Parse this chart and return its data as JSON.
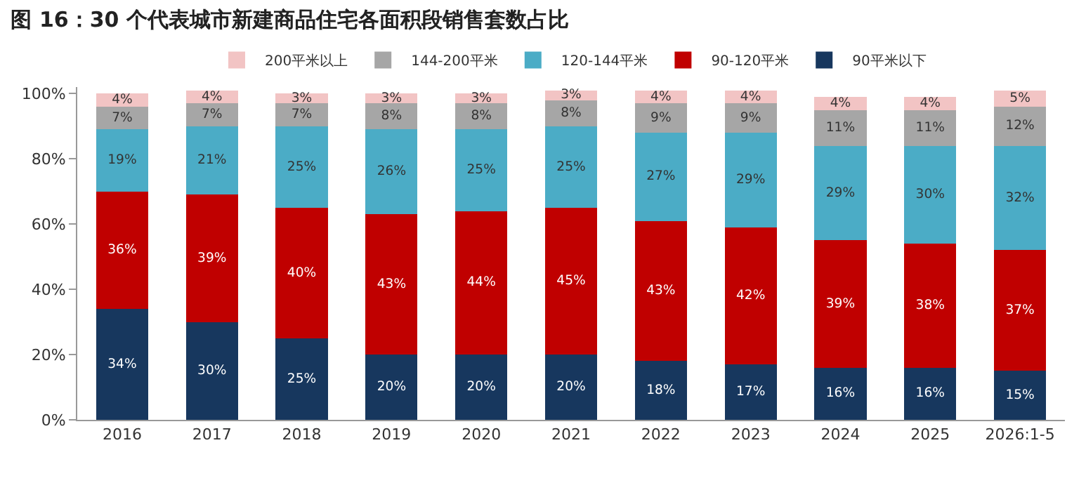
{
  "chart_data": {
    "type": "bar",
    "stacked": true,
    "title": "图 16：30 个代表城市新建商品住宅各面积段销售套数占比",
    "categories": [
      "2016",
      "2017",
      "2018",
      "2019",
      "2020",
      "2021",
      "2022",
      "2023",
      "2024",
      "2025",
      "2026:1-5"
    ],
    "series": [
      {
        "name": "90平米以下",
        "color": "#17375e",
        "values": [
          34,
          30,
          25,
          20,
          20,
          20,
          18,
          17,
          16,
          16,
          15
        ],
        "value_labels": [
          "34%",
          "30%",
          "25%",
          "20%",
          "20%",
          "20%",
          "18%",
          "17%",
          "16%",
          "16%",
          "15%"
        ]
      },
      {
        "name": "90-120平米",
        "color": "#c00000",
        "values": [
          36,
          39,
          40,
          43,
          44,
          45,
          43,
          42,
          39,
          38,
          37
        ],
        "value_labels": [
          "36%",
          "39%",
          "40%",
          "43%",
          "44%",
          "45%",
          "43%",
          "42%",
          "39%",
          "38%",
          "37%"
        ]
      },
      {
        "name": "120-144平米",
        "color": "#4bacc6",
        "values": [
          19,
          21,
          25,
          26,
          25,
          25,
          27,
          29,
          29,
          30,
          32
        ],
        "value_labels": [
          "19%",
          "21%",
          "25%",
          "26%",
          "25%",
          "25%",
          "27%",
          "29%",
          "29%",
          "30%",
          "32%"
        ]
      },
      {
        "name": "144-200平米",
        "color": "#a6a6a6",
        "values": [
          7,
          7,
          7,
          8,
          8,
          8,
          9,
          9,
          11,
          11,
          12
        ],
        "value_labels": [
          "7%",
          "7%",
          "7%",
          "8%",
          "8%",
          "8%",
          "9%",
          "9%",
          "11%",
          "11%",
          "12%"
        ]
      },
      {
        "name": "200平米以上",
        "color": "#f2c4c4",
        "values": [
          4,
          4,
          3,
          3,
          3,
          3,
          4,
          4,
          4,
          4,
          5
        ],
        "value_labels": [
          "4%",
          "4%",
          "3%",
          "3%",
          "3%",
          "3%",
          "4%",
          "4%",
          "4%",
          "4%",
          "5%"
        ]
      }
    ],
    "ylim": [
      0,
      102
    ],
    "yticks": [
      {
        "value": 0,
        "label": "0%"
      },
      {
        "value": 20,
        "label": "20%"
      },
      {
        "value": 40,
        "label": "40%"
      },
      {
        "value": 60,
        "label": "60%"
      },
      {
        "value": 80,
        "label": "80%"
      },
      {
        "value": 100,
        "label": "100%"
      }
    ],
    "legend": "top"
  }
}
